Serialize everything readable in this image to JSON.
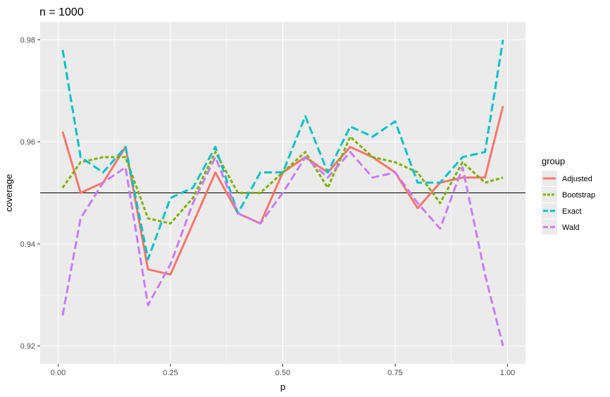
{
  "chart_data": {
    "type": "line",
    "title": "n = 1000",
    "xlabel": "p",
    "ylabel": "coverage",
    "xlim": [
      -0.04,
      1.04
    ],
    "ylim": [
      0.9165,
      0.9835
    ],
    "x_ticks": [
      0.0,
      0.25,
      0.5,
      0.75,
      1.0
    ],
    "x_tick_labels": [
      "0.00",
      "0.25",
      "0.50",
      "0.75",
      "1.00"
    ],
    "y_ticks": [
      0.92,
      0.94,
      0.96,
      0.98
    ],
    "y_tick_labels": [
      "0.92",
      "0.94",
      "0.96",
      "0.98"
    ],
    "grid": true,
    "background": "#ebebeb",
    "legend_title": "group",
    "legend_position": "right",
    "reference_line": {
      "y": 0.95,
      "color": "#000000"
    },
    "x": [
      0.01,
      0.05,
      0.1,
      0.15,
      0.2,
      0.25,
      0.3,
      0.35,
      0.4,
      0.45,
      0.5,
      0.55,
      0.6,
      0.65,
      0.7,
      0.75,
      0.8,
      0.85,
      0.9,
      0.95,
      0.99
    ],
    "series": [
      {
        "name": "Adjusted",
        "color": "#F8766D",
        "dash": "solid",
        "values": [
          0.962,
          0.95,
          0.952,
          0.959,
          0.935,
          0.934,
          0.944,
          0.954,
          0.946,
          0.944,
          0.954,
          0.957,
          0.954,
          0.959,
          0.957,
          0.954,
          0.947,
          0.952,
          0.953,
          0.953,
          0.967
        ]
      },
      {
        "name": "Bootstrap",
        "color": "#7CAE00",
        "dash": "short",
        "values": [
          0.951,
          0.956,
          0.957,
          0.957,
          0.945,
          0.944,
          0.949,
          0.958,
          0.95,
          0.95,
          0.954,
          0.958,
          0.951,
          0.961,
          0.957,
          0.956,
          0.954,
          0.948,
          0.956,
          0.952,
          0.953
        ]
      },
      {
        "name": "Exact",
        "color": "#00BFC4",
        "dash": "long",
        "values": [
          0.978,
          0.957,
          0.954,
          0.959,
          0.937,
          0.949,
          0.951,
          0.959,
          0.946,
          0.954,
          0.954,
          0.965,
          0.954,
          0.963,
          0.961,
          0.964,
          0.952,
          0.952,
          0.957,
          0.958,
          0.98
        ]
      },
      {
        "name": "Wald",
        "color": "#C77CFF",
        "dash": "long",
        "values": [
          0.926,
          0.945,
          0.952,
          0.955,
          0.928,
          0.936,
          0.948,
          0.957,
          0.946,
          0.944,
          0.95,
          0.957,
          0.953,
          0.958,
          0.953,
          0.954,
          0.948,
          0.943,
          0.955,
          0.934,
          0.92
        ]
      }
    ]
  }
}
